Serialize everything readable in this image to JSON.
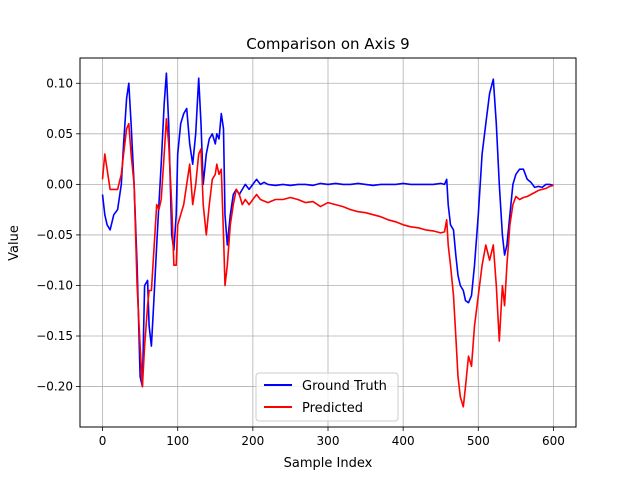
{
  "chart_data": {
    "type": "line",
    "title": "Comparison on Axis 9",
    "xlabel": "Sample Index",
    "ylabel": "Value",
    "xlim": [
      -30,
      630
    ],
    "ylim": [
      -0.24,
      0.125
    ],
    "xticks": [
      0,
      100,
      200,
      300,
      400,
      500,
      600
    ],
    "yticks": [
      -0.2,
      -0.15,
      -0.1,
      -0.05,
      0.0,
      0.05,
      0.1
    ],
    "ytick_labels": [
      "−0.20",
      "−0.15",
      "−0.10",
      "−0.05",
      "0.00",
      "0.05",
      "0.10"
    ],
    "xtick_labels": [
      "0",
      "100",
      "200",
      "300",
      "400",
      "500",
      "600"
    ],
    "grid": true,
    "legend_position": "lower center",
    "series": [
      {
        "name": "Ground Truth",
        "color": "#0000ff",
        "points": [
          [
            0,
            -0.01
          ],
          [
            3,
            -0.03
          ],
          [
            6,
            -0.04
          ],
          [
            10,
            -0.045
          ],
          [
            15,
            -0.03
          ],
          [
            20,
            -0.025
          ],
          [
            25,
            0.0
          ],
          [
            28,
            0.04
          ],
          [
            32,
            0.085
          ],
          [
            35,
            0.1
          ],
          [
            38,
            0.06
          ],
          [
            42,
            0.0
          ],
          [
            46,
            -0.08
          ],
          [
            50,
            -0.19
          ],
          [
            53,
            -0.2
          ],
          [
            56,
            -0.1
          ],
          [
            60,
            -0.095
          ],
          [
            62,
            -0.14
          ],
          [
            65,
            -0.16
          ],
          [
            68,
            -0.12
          ],
          [
            72,
            -0.06
          ],
          [
            75,
            -0.02
          ],
          [
            78,
            0.02
          ],
          [
            82,
            0.08
          ],
          [
            85,
            0.11
          ],
          [
            88,
            0.06
          ],
          [
            92,
            -0.05
          ],
          [
            95,
            -0.065
          ],
          [
            98,
            -0.03
          ],
          [
            100,
            0.03
          ],
          [
            104,
            0.06
          ],
          [
            108,
            0.07
          ],
          [
            112,
            0.075
          ],
          [
            116,
            0.04
          ],
          [
            120,
            0.02
          ],
          [
            124,
            0.05
          ],
          [
            128,
            0.105
          ],
          [
            131,
            0.06
          ],
          [
            134,
            0.0
          ],
          [
            138,
            0.03
          ],
          [
            142,
            0.045
          ],
          [
            146,
            0.05
          ],
          [
            150,
            0.04
          ],
          [
            152,
            0.05
          ],
          [
            155,
            0.045
          ],
          [
            158,
            0.07
          ],
          [
            161,
            0.055
          ],
          [
            163,
            -0.03
          ],
          [
            166,
            -0.06
          ],
          [
            170,
            -0.03
          ],
          [
            174,
            -0.01
          ],
          [
            178,
            -0.005
          ],
          [
            182,
            -0.01
          ],
          [
            186,
            -0.005
          ],
          [
            190,
            0.0
          ],
          [
            195,
            -0.005
          ],
          [
            200,
            0.0
          ],
          [
            205,
            0.005
          ],
          [
            210,
            0.0
          ],
          [
            215,
            0.002
          ],
          [
            220,
            0.0
          ],
          [
            230,
            -0.001
          ],
          [
            240,
            0.0
          ],
          [
            250,
            -0.001
          ],
          [
            260,
            0.0
          ],
          [
            270,
            0.0
          ],
          [
            280,
            -0.001
          ],
          [
            290,
            0.001
          ],
          [
            300,
            0.0
          ],
          [
            310,
            0.001
          ],
          [
            320,
            0.0
          ],
          [
            330,
            0.0
          ],
          [
            340,
            0.001
          ],
          [
            350,
            0.0
          ],
          [
            360,
            -0.001
          ],
          [
            370,
            0.0
          ],
          [
            380,
            0.0
          ],
          [
            390,
            0.0
          ],
          [
            400,
            0.001
          ],
          [
            410,
            0.0
          ],
          [
            420,
            0.0
          ],
          [
            430,
            0.0
          ],
          [
            440,
            0.0
          ],
          [
            450,
            0.001
          ],
          [
            455,
            0.0
          ],
          [
            458,
            0.005
          ],
          [
            460,
            -0.02
          ],
          [
            463,
            -0.04
          ],
          [
            467,
            -0.045
          ],
          [
            470,
            -0.07
          ],
          [
            473,
            -0.09
          ],
          [
            476,
            -0.1
          ],
          [
            480,
            -0.105
          ],
          [
            483,
            -0.115
          ],
          [
            487,
            -0.117
          ],
          [
            491,
            -0.11
          ],
          [
            495,
            -0.08
          ],
          [
            500,
            -0.03
          ],
          [
            505,
            0.03
          ],
          [
            510,
            0.06
          ],
          [
            515,
            0.09
          ],
          [
            520,
            0.104
          ],
          [
            524,
            0.06
          ],
          [
            528,
            0.0
          ],
          [
            532,
            -0.05
          ],
          [
            535,
            -0.07
          ],
          [
            538,
            -0.06
          ],
          [
            542,
            -0.03
          ],
          [
            546,
            0.0
          ],
          [
            550,
            0.01
          ],
          [
            555,
            0.015
          ],
          [
            560,
            0.015
          ],
          [
            565,
            0.005
          ],
          [
            570,
            0.002
          ],
          [
            575,
            -0.003
          ],
          [
            580,
            -0.002
          ],
          [
            585,
            -0.003
          ],
          [
            590,
            0.0
          ],
          [
            595,
            0.0
          ],
          [
            600,
            -0.001
          ]
        ]
      },
      {
        "name": "Predicted",
        "color": "#ff0000",
        "points": [
          [
            0,
            0.005
          ],
          [
            3,
            0.03
          ],
          [
            6,
            0.015
          ],
          [
            10,
            -0.005
          ],
          [
            15,
            -0.005
          ],
          [
            20,
            -0.005
          ],
          [
            25,
            0.01
          ],
          [
            28,
            0.03
          ],
          [
            32,
            0.055
          ],
          [
            35,
            0.06
          ],
          [
            38,
            0.03
          ],
          [
            42,
            0.0
          ],
          [
            46,
            -0.1
          ],
          [
            50,
            -0.16
          ],
          [
            53,
            -0.2
          ],
          [
            56,
            -0.16
          ],
          [
            60,
            -0.12
          ],
          [
            62,
            -0.105
          ],
          [
            65,
            -0.105
          ],
          [
            68,
            -0.07
          ],
          [
            72,
            -0.02
          ],
          [
            75,
            -0.025
          ],
          [
            78,
            -0.015
          ],
          [
            82,
            0.03
          ],
          [
            85,
            0.065
          ],
          [
            88,
            0.04
          ],
          [
            92,
            -0.02
          ],
          [
            95,
            -0.08
          ],
          [
            98,
            -0.08
          ],
          [
            100,
            -0.04
          ],
          [
            104,
            -0.03
          ],
          [
            108,
            -0.02
          ],
          [
            112,
            0.0
          ],
          [
            116,
            0.02
          ],
          [
            120,
            -0.02
          ],
          [
            124,
            0.0
          ],
          [
            128,
            0.03
          ],
          [
            131,
            0.035
          ],
          [
            134,
            -0.02
          ],
          [
            138,
            -0.05
          ],
          [
            142,
            -0.02
          ],
          [
            146,
            0.005
          ],
          [
            150,
            0.01
          ],
          [
            152,
            0.02
          ],
          [
            155,
            0.01
          ],
          [
            158,
            0.015
          ],
          [
            161,
            -0.05
          ],
          [
            163,
            -0.1
          ],
          [
            166,
            -0.08
          ],
          [
            170,
            -0.04
          ],
          [
            174,
            -0.02
          ],
          [
            178,
            -0.005
          ],
          [
            182,
            -0.01
          ],
          [
            186,
            -0.02
          ],
          [
            190,
            -0.015
          ],
          [
            195,
            -0.02
          ],
          [
            200,
            -0.015
          ],
          [
            205,
            -0.01
          ],
          [
            210,
            -0.015
          ],
          [
            220,
            -0.018
          ],
          [
            230,
            -0.015
          ],
          [
            240,
            -0.015
          ],
          [
            250,
            -0.013
          ],
          [
            260,
            -0.015
          ],
          [
            270,
            -0.018
          ],
          [
            280,
            -0.017
          ],
          [
            290,
            -0.022
          ],
          [
            300,
            -0.018
          ],
          [
            310,
            -0.02
          ],
          [
            320,
            -0.022
          ],
          [
            330,
            -0.025
          ],
          [
            340,
            -0.027
          ],
          [
            350,
            -0.028
          ],
          [
            360,
            -0.03
          ],
          [
            370,
            -0.032
          ],
          [
            380,
            -0.035
          ],
          [
            390,
            -0.037
          ],
          [
            400,
            -0.04
          ],
          [
            410,
            -0.042
          ],
          [
            420,
            -0.043
          ],
          [
            430,
            -0.045
          ],
          [
            440,
            -0.046
          ],
          [
            450,
            -0.048
          ],
          [
            455,
            -0.047
          ],
          [
            458,
            -0.035
          ],
          [
            460,
            -0.06
          ],
          [
            463,
            -0.08
          ],
          [
            467,
            -0.11
          ],
          [
            470,
            -0.15
          ],
          [
            473,
            -0.19
          ],
          [
            476,
            -0.21
          ],
          [
            480,
            -0.22
          ],
          [
            483,
            -0.2
          ],
          [
            487,
            -0.17
          ],
          [
            491,
            -0.18
          ],
          [
            495,
            -0.14
          ],
          [
            500,
            -0.11
          ],
          [
            505,
            -0.08
          ],
          [
            510,
            -0.06
          ],
          [
            515,
            -0.075
          ],
          [
            520,
            -0.06
          ],
          [
            524,
            -0.1
          ],
          [
            528,
            -0.155
          ],
          [
            532,
            -0.1
          ],
          [
            535,
            -0.12
          ],
          [
            538,
            -0.08
          ],
          [
            542,
            -0.04
          ],
          [
            546,
            -0.02
          ],
          [
            550,
            -0.012
          ],
          [
            555,
            -0.015
          ],
          [
            560,
            -0.013
          ],
          [
            565,
            -0.012
          ],
          [
            570,
            -0.01
          ],
          [
            575,
            -0.008
          ],
          [
            580,
            -0.006
          ],
          [
            585,
            -0.005
          ],
          [
            590,
            -0.004
          ],
          [
            595,
            -0.002
          ],
          [
            600,
            -0.001
          ]
        ]
      }
    ]
  }
}
